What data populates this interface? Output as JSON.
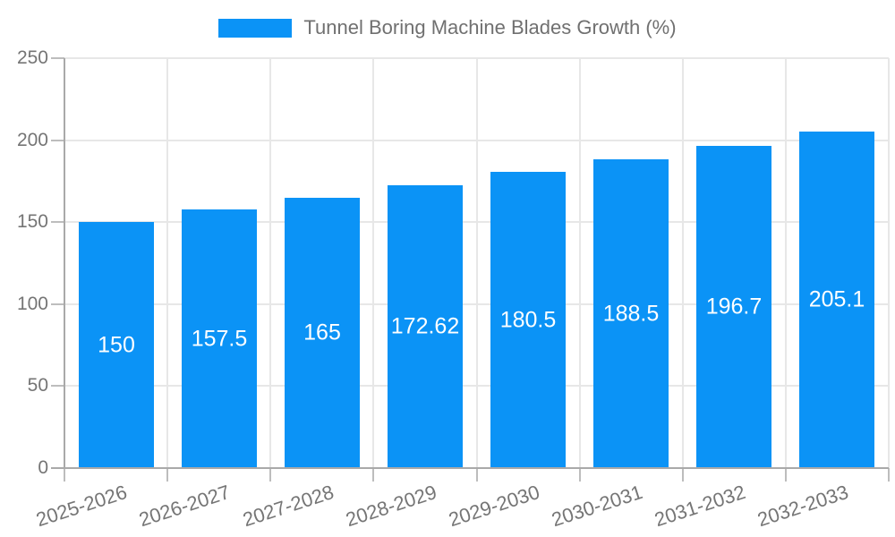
{
  "chart_data": {
    "type": "bar",
    "title": "Tunnel Boring Machine Blades Growth (%)",
    "legend_label": "Tunnel Boring Machine Blades Growth (%)",
    "legend_position": "top",
    "categories": [
      "2025-2026",
      "2026-2027",
      "2027-2028",
      "2028-2029",
      "2029-2030",
      "2030-2031",
      "2031-2032",
      "2032-2033"
    ],
    "values": [
      150,
      157.5,
      165,
      172.62,
      180.5,
      188.5,
      196.7,
      205.1
    ],
    "xlabel": "",
    "ylabel": "",
    "ylim": [
      0,
      250
    ],
    "yticks": [
      0,
      50,
      100,
      150,
      200,
      250
    ],
    "grid": true,
    "x_tick_rotation_deg": -18,
    "bar_color": "#0b93f6",
    "value_label_color": "#ffffff",
    "text_color": "#757575",
    "legend_text_color": "#707070",
    "grid_color": "#e7e7e7",
    "axis_color": "#a9a9a9",
    "tick_color": "#bdbdbd"
  }
}
